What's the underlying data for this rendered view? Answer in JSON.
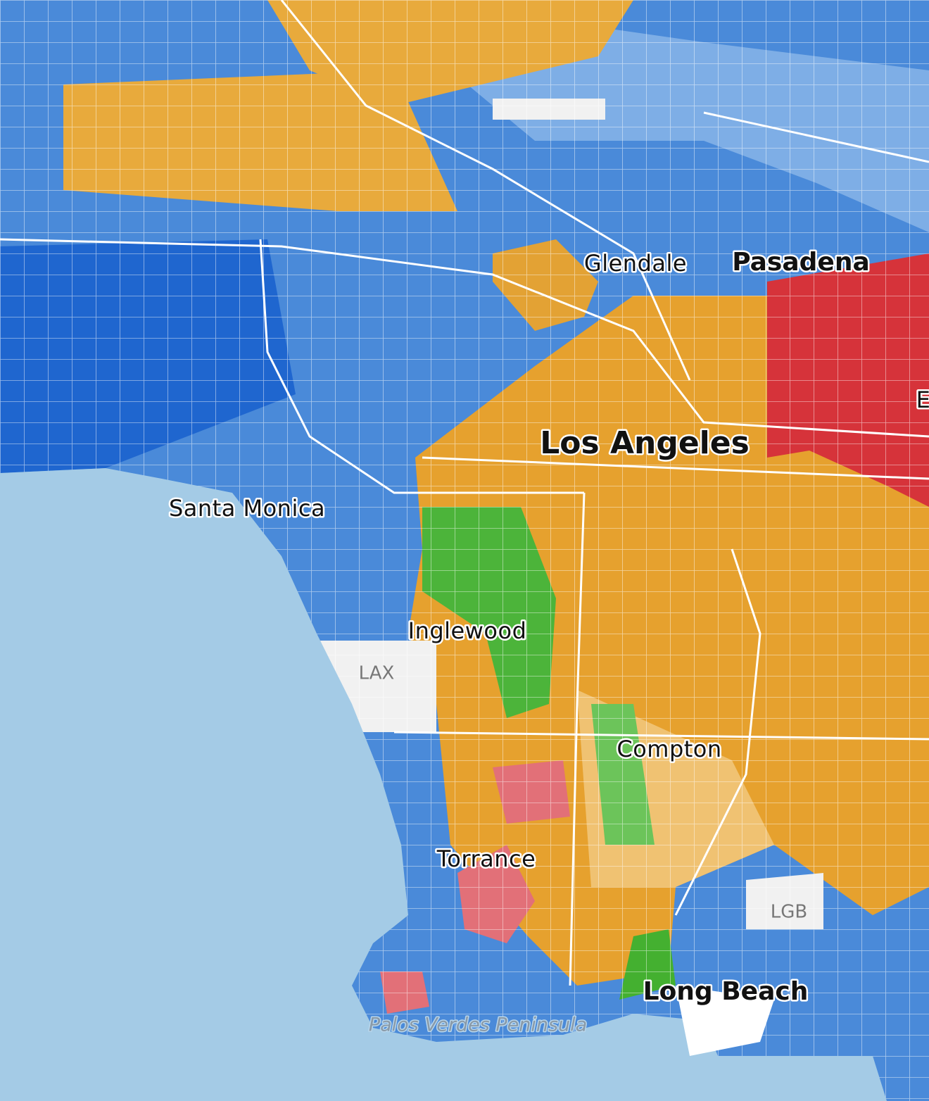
{
  "labels": [
    {
      "text": "Glendale"
    },
    {
      "text": "Pasadena"
    },
    {
      "text": "E"
    },
    {
      "text": "Los Angeles"
    },
    {
      "text": "Santa Monica"
    },
    {
      "text": "Inglewood"
    },
    {
      "text": "LAX"
    },
    {
      "text": "Compton"
    },
    {
      "text": "Torrance"
    },
    {
      "text": "LGB"
    },
    {
      "text": "Long Beach"
    },
    {
      "text": "Palos Verdes Peninsula"
    }
  ]
}
